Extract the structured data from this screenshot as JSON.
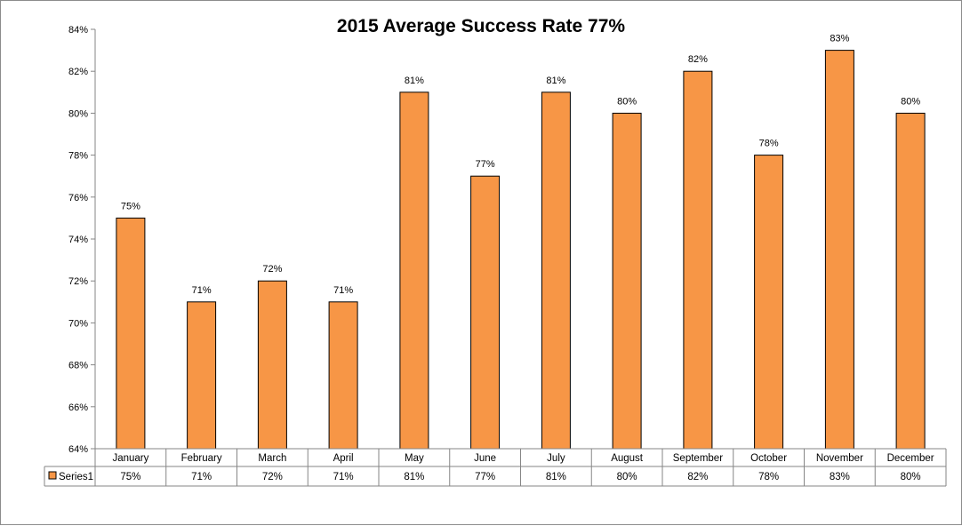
{
  "chart_data": {
    "type": "bar",
    "title": "2015 Average Success Rate 77%",
    "categories": [
      "January",
      "February",
      "March",
      "April",
      "May",
      "June",
      "July",
      "August",
      "September",
      "October",
      "November",
      "December"
    ],
    "series": [
      {
        "name": "Series1",
        "values": [
          75,
          71,
          72,
          71,
          81,
          77,
          81,
          80,
          82,
          78,
          83,
          80
        ],
        "labels": [
          "75%",
          "71%",
          "72%",
          "71%",
          "81%",
          "77%",
          "81%",
          "80%",
          "82%",
          "78%",
          "83%",
          "80%"
        ],
        "color": "#f79646"
      }
    ],
    "ylim": [
      64,
      84
    ],
    "yticks": [
      "64%",
      "66%",
      "68%",
      "70%",
      "72%",
      "74%",
      "76%",
      "78%",
      "80%",
      "82%",
      "84%"
    ],
    "grid": false,
    "legend": "data-table",
    "data_table": true
  }
}
